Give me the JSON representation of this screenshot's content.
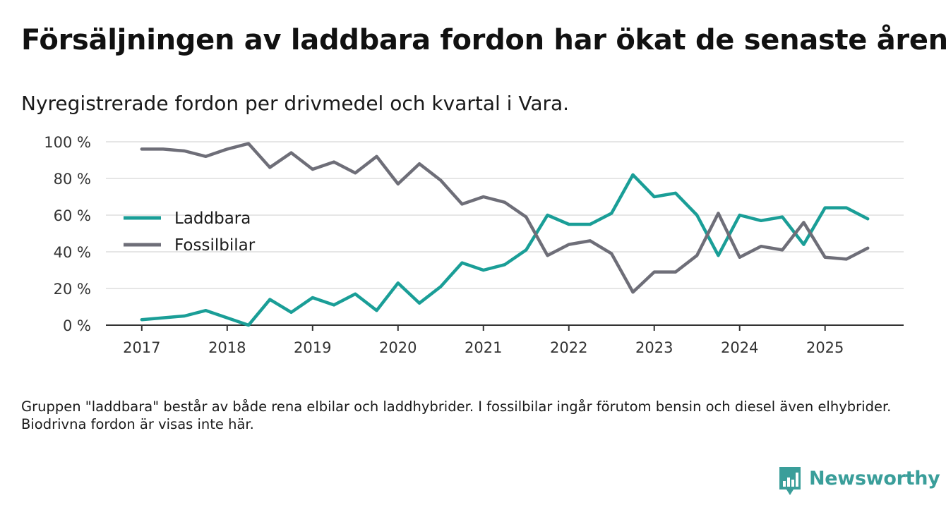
{
  "title": "Försäljningen av laddbara fordon har ökat de senaste åren",
  "subtitle": "Nyregistrerade fordon per drivmedel och kvartal i Vara.",
  "footnote": "Gruppen \"laddbara\" består av både rena elbilar och laddhybrider. I fossilbilar ingår förutom bensin och diesel även elhybrider. Biodrivna fordon är visas inte här.",
  "brand": {
    "name": "Newsworthy",
    "color": "#3a9e9a"
  },
  "chart_data": {
    "type": "line",
    "title": "Försäljningen av laddbara fordon har ökat de senaste åren",
    "xlabel": "",
    "ylabel": "",
    "x": [
      2017.0,
      2017.25,
      2017.5,
      2017.75,
      2018.0,
      2018.25,
      2018.5,
      2018.75,
      2019.0,
      2019.25,
      2019.5,
      2019.75,
      2020.0,
      2020.25,
      2020.5,
      2020.75,
      2021.0,
      2021.25,
      2021.5,
      2021.75,
      2022.0,
      2022.25,
      2022.5,
      2022.75,
      2023.0,
      2023.25,
      2023.5,
      2023.75,
      2024.0,
      2024.25,
      2024.5,
      2024.75,
      2025.0,
      2025.25,
      2025.5
    ],
    "xlim": [
      2016.58,
      2025.92
    ],
    "xticks": [
      2017,
      2018,
      2019,
      2020,
      2021,
      2022,
      2023,
      2024,
      2025
    ],
    "xtick_labels": [
      "2017",
      "2018",
      "2019",
      "2020",
      "2021",
      "2022",
      "2023",
      "2024",
      "2025"
    ],
    "ylim": [
      0,
      100
    ],
    "yticks": [
      0,
      20,
      40,
      60,
      80,
      100
    ],
    "ytick_labels": [
      "0 %",
      "20 %",
      "40 %",
      "60 %",
      "80 %",
      "100 %"
    ],
    "grid": true,
    "legend_position": "center-left",
    "series": [
      {
        "name": "Laddbara",
        "color": "#1a9e97",
        "values": [
          3,
          4,
          5,
          8,
          4,
          0,
          14,
          7,
          15,
          11,
          17,
          8,
          23,
          12,
          21,
          34,
          30,
          33,
          41,
          60,
          55,
          55,
          61,
          82,
          70,
          72,
          60,
          38,
          60,
          57,
          59,
          44,
          64,
          64,
          58
        ]
      },
      {
        "name": "Fossilbilar",
        "color": "#6e6e78",
        "values": [
          96,
          96,
          95,
          92,
          96,
          99,
          86,
          94,
          85,
          89,
          83,
          92,
          77,
          88,
          79,
          66,
          70,
          67,
          59,
          38,
          44,
          46,
          39,
          18,
          29,
          29,
          38,
          61,
          37,
          43,
          41,
          56,
          37,
          36,
          42
        ]
      }
    ]
  }
}
